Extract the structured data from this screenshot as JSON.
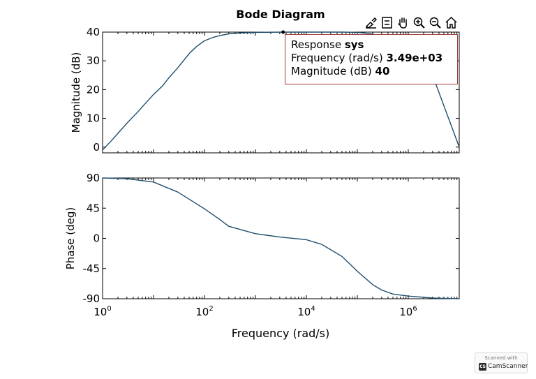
{
  "chart_data": {
    "title": "Bode Diagram",
    "xlabel": "Frequency (rad/s)",
    "xscale": "log",
    "xlim": [
      1,
      10000000
    ],
    "x_ticks": [
      {
        "base": "10",
        "exp": "0"
      },
      {
        "base": "10",
        "exp": "2"
      },
      {
        "base": "10",
        "exp": "4"
      },
      {
        "base": "10",
        "exp": "6"
      }
    ],
    "panels": [
      {
        "type": "line",
        "ylabel": "Magnitude (dB)",
        "ylim": [
          -2,
          40
        ],
        "y_ticks": [
          "40",
          "30",
          "20",
          "10",
          "0"
        ],
        "y_tick_values": [
          40,
          30,
          20,
          10,
          0
        ],
        "series": [
          {
            "x": [
              1,
              1.5,
              2,
              3,
              5,
              7,
              10,
              15,
              20,
              30,
              50,
              70,
              100,
              150,
              200,
              300,
              500,
              1000,
              3490,
              10000,
              50000,
              100000,
              150000,
              200000,
              300000,
              500000,
              1000000,
              3000000,
              10000000
            ],
            "y": [
              -1,
              2.3,
              4.8,
              8.3,
              12.4,
              15.3,
              18.3,
              21.3,
              24.1,
              27.6,
              32.5,
              35,
              37,
              38.2,
              38.8,
              39.4,
              39.7,
              39.9,
              40,
              40,
              40,
              39.9,
              39.6,
              39.3,
              38.5,
              36.8,
              33,
              25,
              0
            ]
          }
        ]
      },
      {
        "type": "line",
        "ylabel": "Phase (deg)",
        "ylim": [
          -90,
          90
        ],
        "y_ticks": [
          "90",
          "45",
          "0",
          "-45",
          "-90"
        ],
        "y_tick_values": [
          90,
          45,
          0,
          -45,
          -90
        ],
        "series": [
          {
            "x": [
              1,
              3,
              10,
              30,
              100,
              200,
              300,
              1000,
              3000,
              10000,
              20000,
              50000,
              100000,
              200000,
              300000,
              500000,
              1000000,
              3000000,
              10000000
            ],
            "y": [
              90,
              89,
              84,
              69,
              44,
              28,
              18,
              7,
              2,
              -2,
              -9,
              -27,
              -49,
              -69,
              -77,
              -83,
              -86,
              -89,
              -90
            ]
          }
        ]
      }
    ],
    "datatip": {
      "title_label": "Response",
      "title_value": "sys",
      "line1_label": "Frequency (rad/s)",
      "line1_value": "3.49e+03",
      "line2_label": "Magnitude (dB)",
      "line2_value": "40",
      "point": {
        "x": 3490,
        "y": 40
      }
    }
  },
  "toolbar": {
    "icons": [
      "brush-icon",
      "legend-icon",
      "pan-hand-icon",
      "zoom-in-icon",
      "zoom-out-icon",
      "home-icon"
    ]
  },
  "watermark": {
    "top": "Scanned with",
    "logo": "CS",
    "name": "CamScanner"
  },
  "colors": {
    "line": "#1f4f6e",
    "datatip_border": "#a33b3b"
  }
}
